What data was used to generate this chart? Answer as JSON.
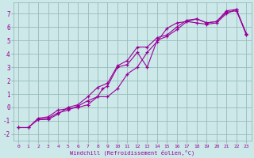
{
  "xlabel": "Windchill (Refroidissement éolien,°C)",
  "bg_color": "#cce8e8",
  "grid_color": "#99bbbb",
  "line_color": "#990099",
  "xlim": [
    -0.5,
    23.5
  ],
  "ylim": [
    -2.5,
    7.8
  ],
  "yticks": [
    -2,
    -1,
    0,
    1,
    2,
    3,
    4,
    5,
    6,
    7
  ],
  "xticks": [
    0,
    1,
    2,
    3,
    4,
    5,
    6,
    7,
    8,
    9,
    10,
    11,
    12,
    13,
    14,
    15,
    16,
    17,
    18,
    19,
    20,
    21,
    22,
    23
  ],
  "segments": [
    {
      "x": [
        0,
        1,
        2,
        3,
        4,
        5,
        6,
        7,
        8,
        9,
        10,
        11,
        12,
        13,
        14,
        15,
        16,
        17,
        18,
        19,
        20,
        21,
        22,
        23
      ],
      "y": [
        -1.5,
        -1.5,
        -0.8,
        -0.7,
        -0.2,
        -0.1,
        0.0,
        0.2,
        0.8,
        0.8,
        1.4,
        2.5,
        3.0,
        4.1,
        4.9,
        5.9,
        6.3,
        6.4,
        6.6,
        6.3,
        6.4,
        7.2,
        7.3,
        5.5
      ]
    },
    {
      "x": [
        0,
        1,
        2,
        3,
        4,
        5,
        6,
        7,
        8,
        8.5,
        9,
        10,
        11,
        12,
        13,
        14,
        15,
        16,
        17,
        18,
        19,
        20,
        21,
        22,
        23
      ],
      "y": [
        -1.5,
        -1.5,
        -0.9,
        -0.8,
        -0.4,
        -0.2,
        0.1,
        0.5,
        0.8,
        1.4,
        1.6,
        3.0,
        3.2,
        4.1,
        3.0,
        5.0,
        5.3,
        5.8,
        6.4,
        6.3,
        6.2,
        6.3,
        7.0,
        7.3,
        5.4
      ]
    },
    {
      "x": [
        2,
        3,
        4,
        5,
        6,
        7,
        8,
        9,
        10,
        11,
        12,
        13,
        14,
        15,
        16,
        17,
        18,
        19,
        20,
        21,
        22,
        23
      ],
      "y": [
        -0.9,
        -0.9,
        -0.5,
        0.0,
        0.2,
        0.8,
        1.5,
        1.8,
        3.1,
        3.5,
        4.5,
        4.5,
        5.2,
        5.4,
        6.0,
        6.5,
        6.6,
        6.3,
        6.4,
        7.1,
        7.2,
        5.5
      ]
    }
  ]
}
